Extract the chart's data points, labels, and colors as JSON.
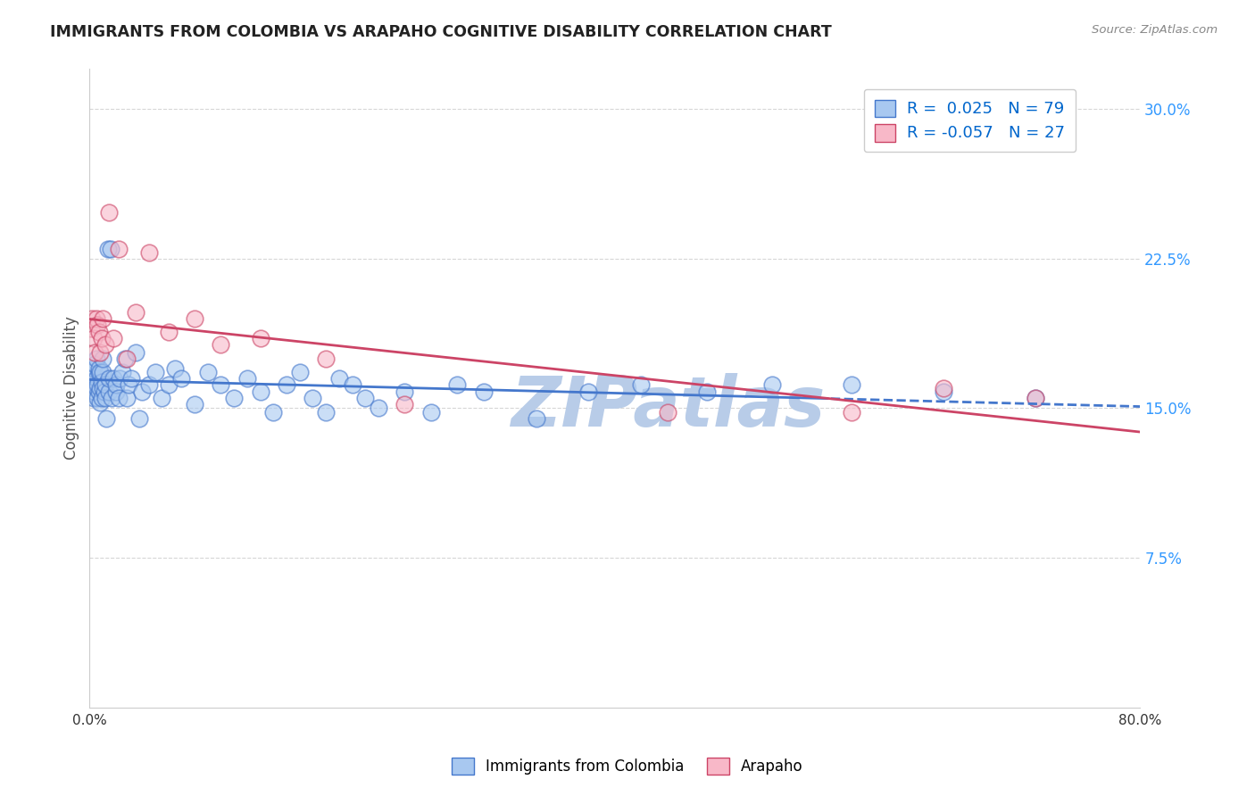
{
  "title": "IMMIGRANTS FROM COLOMBIA VS ARAPAHO COGNITIVE DISABILITY CORRELATION CHART",
  "source": "Source: ZipAtlas.com",
  "xlim": [
    0.0,
    0.8
  ],
  "ylim": [
    0.0,
    0.32
  ],
  "ytick_vals": [
    0.075,
    0.15,
    0.225,
    0.3
  ],
  "ytick_labels": [
    "7.5%",
    "15.0%",
    "22.5%",
    "30.0%"
  ],
  "xtick_vals": [
    0.0,
    0.8
  ],
  "xtick_labels": [
    "0.0%",
    "80.0%"
  ],
  "series1_label": "Immigrants from Colombia",
  "series1_color": "#a8c8f0",
  "series1_edge_color": "#4477cc",
  "series1_R": "0.025",
  "series1_N": "79",
  "series2_label": "Arapaho",
  "series2_color": "#f8b8c8",
  "series2_edge_color": "#cc4466",
  "series2_R": "-0.057",
  "series2_N": "27",
  "trend1_color": "#4477cc",
  "trend2_color": "#cc4466",
  "watermark": "ZIPatlas",
  "watermark_color": "#b8cce8",
  "legend_color": "#0066cc",
  "background_color": "#ffffff",
  "grid_color": "#cccccc",
  "grid_style": "--",
  "series1_x": [
    0.001,
    0.002,
    0.002,
    0.003,
    0.003,
    0.004,
    0.004,
    0.004,
    0.005,
    0.005,
    0.005,
    0.006,
    0.006,
    0.007,
    0.007,
    0.007,
    0.008,
    0.008,
    0.008,
    0.009,
    0.009,
    0.01,
    0.01,
    0.01,
    0.011,
    0.012,
    0.012,
    0.013,
    0.014,
    0.015,
    0.015,
    0.016,
    0.017,
    0.018,
    0.02,
    0.02,
    0.022,
    0.023,
    0.025,
    0.027,
    0.028,
    0.03,
    0.032,
    0.035,
    0.038,
    0.04,
    0.045,
    0.05,
    0.055,
    0.06,
    0.065,
    0.07,
    0.08,
    0.09,
    0.1,
    0.11,
    0.12,
    0.13,
    0.14,
    0.15,
    0.16,
    0.17,
    0.18,
    0.19,
    0.2,
    0.21,
    0.22,
    0.24,
    0.26,
    0.28,
    0.3,
    0.34,
    0.38,
    0.42,
    0.47,
    0.52,
    0.58,
    0.65,
    0.72
  ],
  "series1_y": [
    0.163,
    0.165,
    0.168,
    0.155,
    0.17,
    0.158,
    0.162,
    0.172,
    0.16,
    0.165,
    0.175,
    0.155,
    0.162,
    0.168,
    0.158,
    0.17,
    0.153,
    0.16,
    0.168,
    0.155,
    0.163,
    0.16,
    0.168,
    0.175,
    0.158,
    0.155,
    0.162,
    0.145,
    0.23,
    0.158,
    0.165,
    0.23,
    0.155,
    0.165,
    0.158,
    0.162,
    0.155,
    0.165,
    0.168,
    0.175,
    0.155,
    0.162,
    0.165,
    0.178,
    0.145,
    0.158,
    0.162,
    0.168,
    0.155,
    0.162,
    0.17,
    0.165,
    0.152,
    0.168,
    0.162,
    0.155,
    0.165,
    0.158,
    0.148,
    0.162,
    0.168,
    0.155,
    0.148,
    0.165,
    0.162,
    0.155,
    0.15,
    0.158,
    0.148,
    0.162,
    0.158,
    0.145,
    0.158,
    0.162,
    0.158,
    0.162,
    0.162,
    0.158,
    0.155
  ],
  "series2_x": [
    0.001,
    0.002,
    0.003,
    0.004,
    0.005,
    0.006,
    0.007,
    0.008,
    0.009,
    0.01,
    0.012,
    0.015,
    0.018,
    0.022,
    0.028,
    0.035,
    0.045,
    0.06,
    0.08,
    0.1,
    0.13,
    0.18,
    0.24,
    0.44,
    0.58,
    0.65,
    0.72
  ],
  "series2_y": [
    0.19,
    0.195,
    0.185,
    0.178,
    0.195,
    0.192,
    0.188,
    0.178,
    0.185,
    0.195,
    0.182,
    0.248,
    0.185,
    0.23,
    0.175,
    0.198,
    0.228,
    0.188,
    0.195,
    0.182,
    0.185,
    0.175,
    0.152,
    0.148,
    0.148,
    0.16,
    0.155
  ]
}
